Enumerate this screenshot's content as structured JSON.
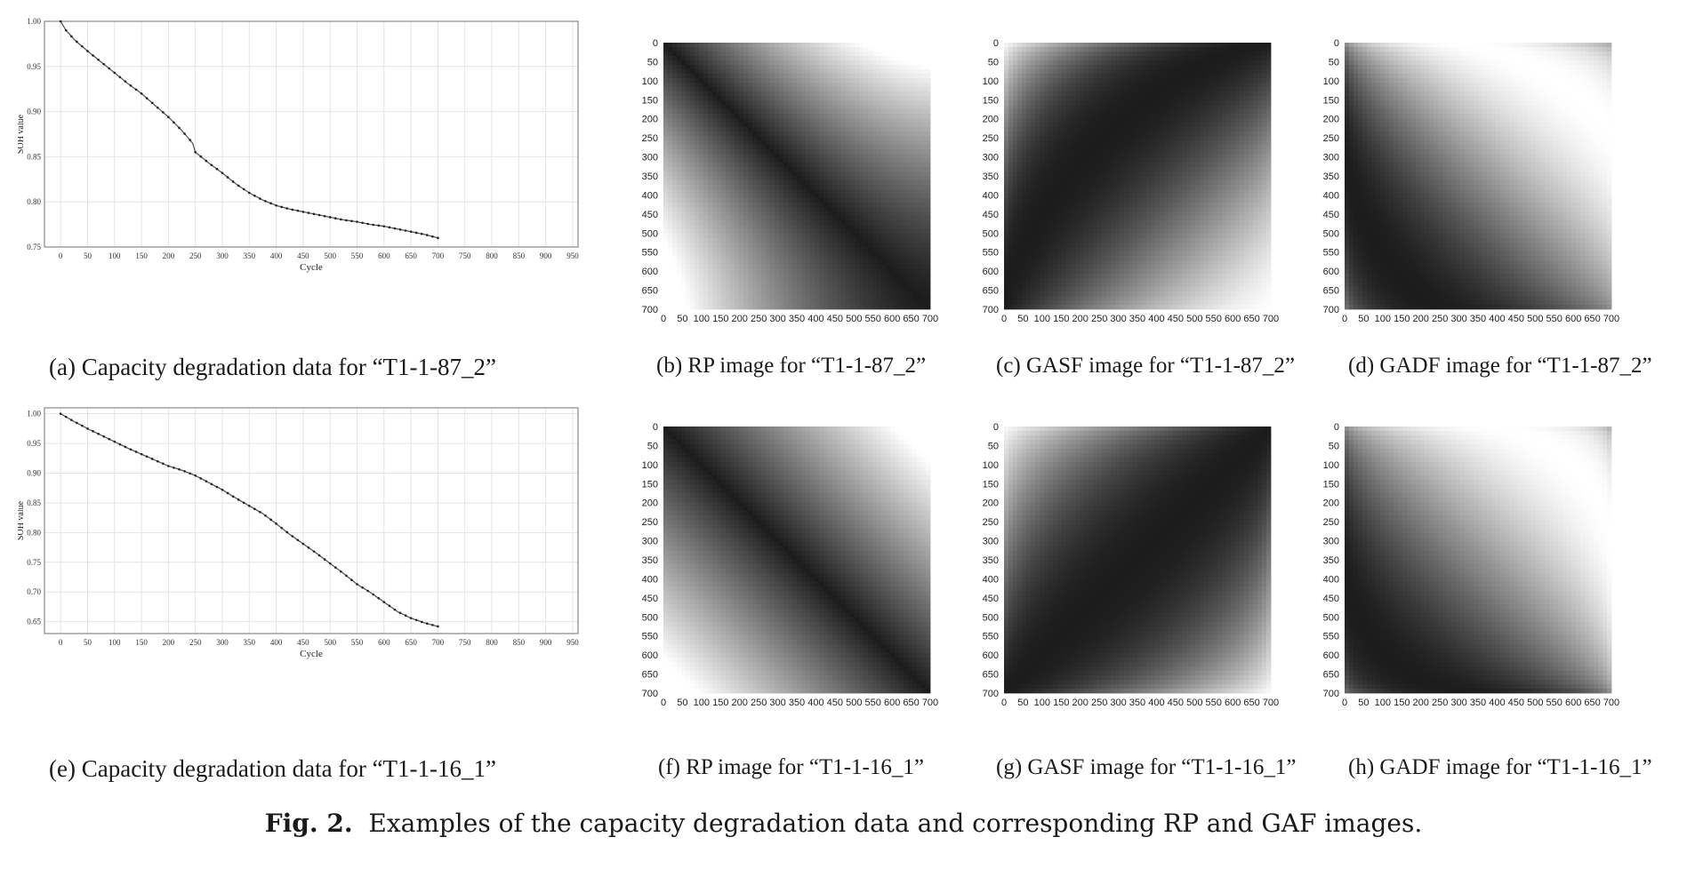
{
  "figure": {
    "label": "Fig. 2.",
    "caption": "Examples of the capacity degradation data and corresponding RP and GAF images."
  },
  "panels": [
    {
      "id": "a",
      "caption": "(a) Capacity degradation data for “T1-1-87_2”"
    },
    {
      "id": "b",
      "caption": "(b) RP image for “T1-1-87_2”"
    },
    {
      "id": "c",
      "caption": "(c) GASF image for “T1-1-87_2”"
    },
    {
      "id": "d",
      "caption": "(d) GADF image for “T1-1-87_2”"
    },
    {
      "id": "e",
      "caption": "(e) Capacity degradation data for “T1-1-16_1”"
    },
    {
      "id": "f",
      "caption": "(f) RP image for “T1-1-16_1”"
    },
    {
      "id": "g",
      "caption": "(g) GASF image for “T1-1-16_1”"
    },
    {
      "id": "h",
      "caption": "(h) GADF image for “T1-1-16_1”"
    }
  ],
  "chart_data": [
    {
      "id": "a",
      "type": "line",
      "xlabel": "Cycle",
      "ylabel": "SOH value",
      "xlim": [
        -30,
        960
      ],
      "ylim": [
        0.75,
        1.0
      ],
      "xticks": [
        0,
        50,
        100,
        150,
        200,
        250,
        300,
        350,
        400,
        450,
        500,
        550,
        600,
        650,
        700,
        750,
        800,
        850,
        900,
        950
      ],
      "yticks": [
        0.75,
        0.8,
        0.85,
        0.9,
        0.95,
        1.0
      ],
      "grid": true,
      "line_color": "#555555",
      "x": [
        0,
        10,
        25,
        50,
        75,
        100,
        125,
        150,
        175,
        200,
        225,
        245,
        250,
        275,
        300,
        325,
        350,
        375,
        400,
        425,
        450,
        475,
        500,
        525,
        550,
        575,
        600,
        625,
        650,
        675,
        700
      ],
      "y": [
        1.0,
        0.99,
        0.98,
        0.967,
        0.955,
        0.943,
        0.931,
        0.92,
        0.907,
        0.894,
        0.879,
        0.865,
        0.855,
        0.843,
        0.832,
        0.82,
        0.81,
        0.802,
        0.796,
        0.792,
        0.789,
        0.786,
        0.783,
        0.78,
        0.778,
        0.775,
        0.773,
        0.77,
        0.767,
        0.764,
        0.76
      ]
    },
    {
      "id": "e",
      "type": "line",
      "xlabel": "Cycle",
      "ylabel": "SOH value",
      "xlim": [
        -30,
        960
      ],
      "ylim": [
        0.63,
        1.01
      ],
      "xticks": [
        0,
        50,
        100,
        150,
        200,
        250,
        300,
        350,
        400,
        450,
        500,
        550,
        600,
        650,
        700,
        750,
        800,
        850,
        900,
        950
      ],
      "yticks": [
        0.65,
        0.7,
        0.75,
        0.8,
        0.85,
        0.9,
        0.95,
        1.0
      ],
      "grid": true,
      "line_color": "#555555",
      "x": [
        0,
        25,
        50,
        75,
        100,
        125,
        150,
        175,
        200,
        225,
        250,
        275,
        300,
        325,
        350,
        375,
        400,
        425,
        450,
        475,
        500,
        525,
        550,
        575,
        600,
        625,
        650,
        675,
        700
      ],
      "y": [
        1.0,
        0.987,
        0.975,
        0.964,
        0.953,
        0.942,
        0.932,
        0.922,
        0.912,
        0.905,
        0.896,
        0.884,
        0.872,
        0.858,
        0.845,
        0.832,
        0.815,
        0.797,
        0.781,
        0.765,
        0.748,
        0.731,
        0.713,
        0.699,
        0.683,
        0.667,
        0.656,
        0.648,
        0.642
      ]
    },
    {
      "id": "b",
      "type": "heatmap",
      "kind": "RP",
      "ticks": [
        0,
        50,
        100,
        150,
        200,
        250,
        300,
        350,
        400,
        450,
        500,
        550,
        600,
        650,
        700
      ]
    },
    {
      "id": "c",
      "type": "heatmap",
      "kind": "GASF",
      "ticks": [
        0,
        50,
        100,
        150,
        200,
        250,
        300,
        350,
        400,
        450,
        500,
        550,
        600,
        650,
        700
      ]
    },
    {
      "id": "d",
      "type": "heatmap",
      "kind": "GADF",
      "ticks": [
        0,
        50,
        100,
        150,
        200,
        250,
        300,
        350,
        400,
        450,
        500,
        550,
        600,
        650,
        700
      ]
    },
    {
      "id": "f",
      "type": "heatmap",
      "kind": "RP",
      "ticks": [
        0,
        50,
        100,
        150,
        200,
        250,
        300,
        350,
        400,
        450,
        500,
        550,
        600,
        650,
        700
      ]
    },
    {
      "id": "g",
      "type": "heatmap",
      "kind": "GASF",
      "ticks": [
        0,
        50,
        100,
        150,
        200,
        250,
        300,
        350,
        400,
        450,
        500,
        550,
        600,
        650,
        700
      ]
    },
    {
      "id": "h",
      "type": "heatmap",
      "kind": "GADF",
      "ticks": [
        0,
        50,
        100,
        150,
        200,
        250,
        300,
        350,
        400,
        450,
        500,
        550,
        600,
        650,
        700
      ]
    }
  ]
}
